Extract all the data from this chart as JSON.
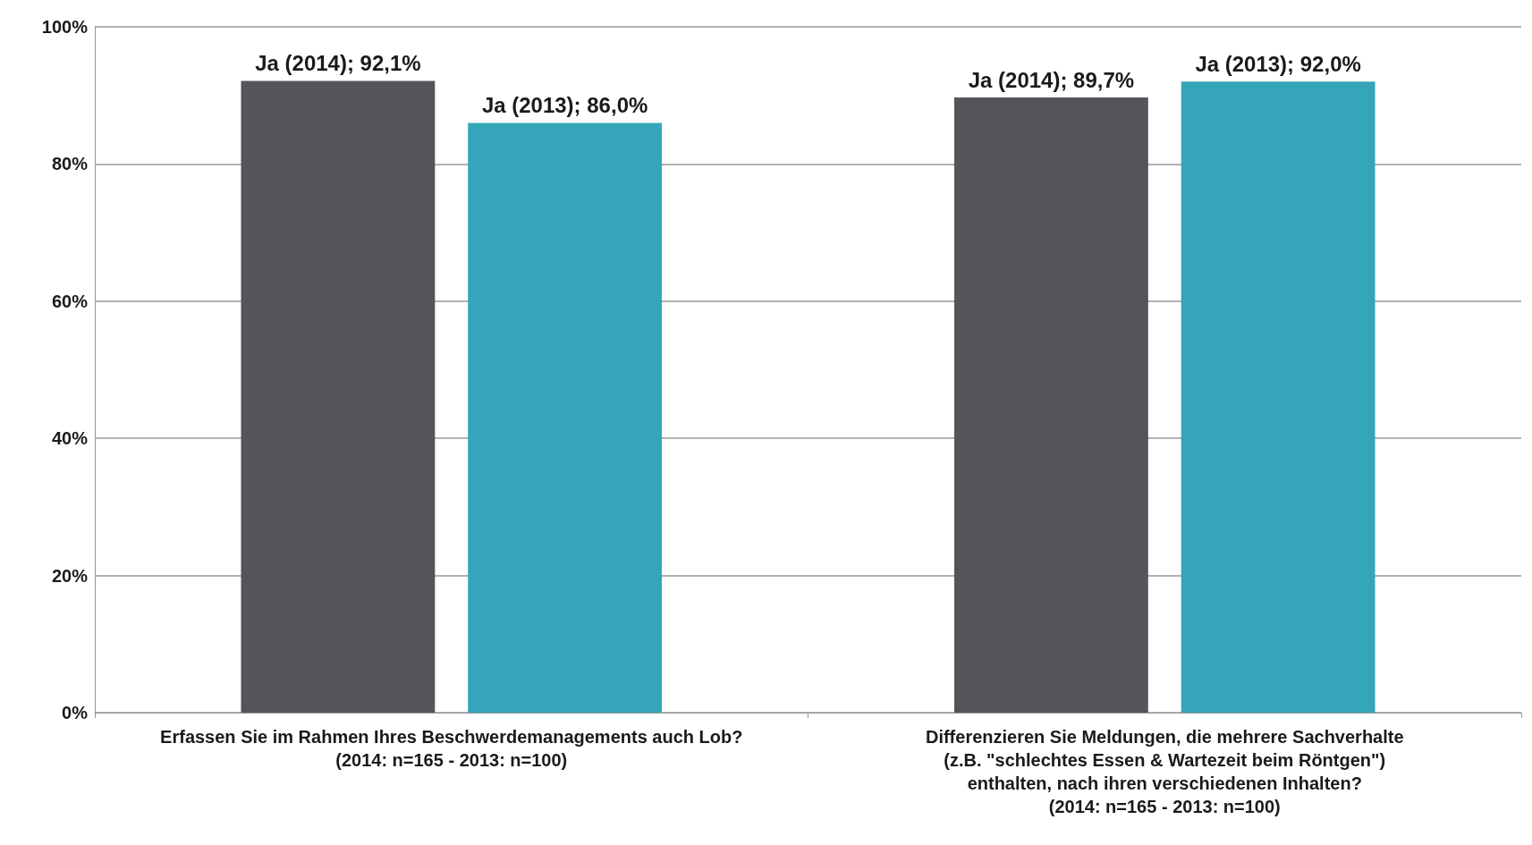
{
  "chart_data": {
    "type": "bar",
    "categories": [
      "Erfassen Sie im Rahmen Ihres Beschwerdemanagements auch Lob?\n(2014: n=165 - 2013: n=100)",
      "Differenzieren Sie Meldungen, die mehrere Sachverhalte\n(z.B. \"schlechtes Essen & Wartezeit beim Röntgen\")\nenthalten, nach ihren verschiedenen Inhalten?\n(2014: n=165 - 2013: n=100)"
    ],
    "series": [
      {
        "color": "#545559",
        "values": [
          92.1,
          89.7
        ],
        "value_labels": [
          "Ja (2014); 92,1%",
          "Ja (2014); 89,7%"
        ]
      },
      {
        "color": "#35a6b9",
        "values": [
          86.0,
          92.0
        ],
        "value_labels": [
          "Ja (2013); 86,0%",
          "Ja (2013); 92,0%"
        ]
      }
    ],
    "ylim": [
      0,
      100
    ],
    "yticks": [
      {
        "value": 0,
        "label": "0%"
      },
      {
        "value": 20,
        "label": "20%"
      },
      {
        "value": 40,
        "label": "40%"
      },
      {
        "value": 60,
        "label": "60%"
      },
      {
        "value": 80,
        "label": "80%"
      },
      {
        "value": 100,
        "label": "100%"
      }
    ],
    "grid": "y"
  }
}
